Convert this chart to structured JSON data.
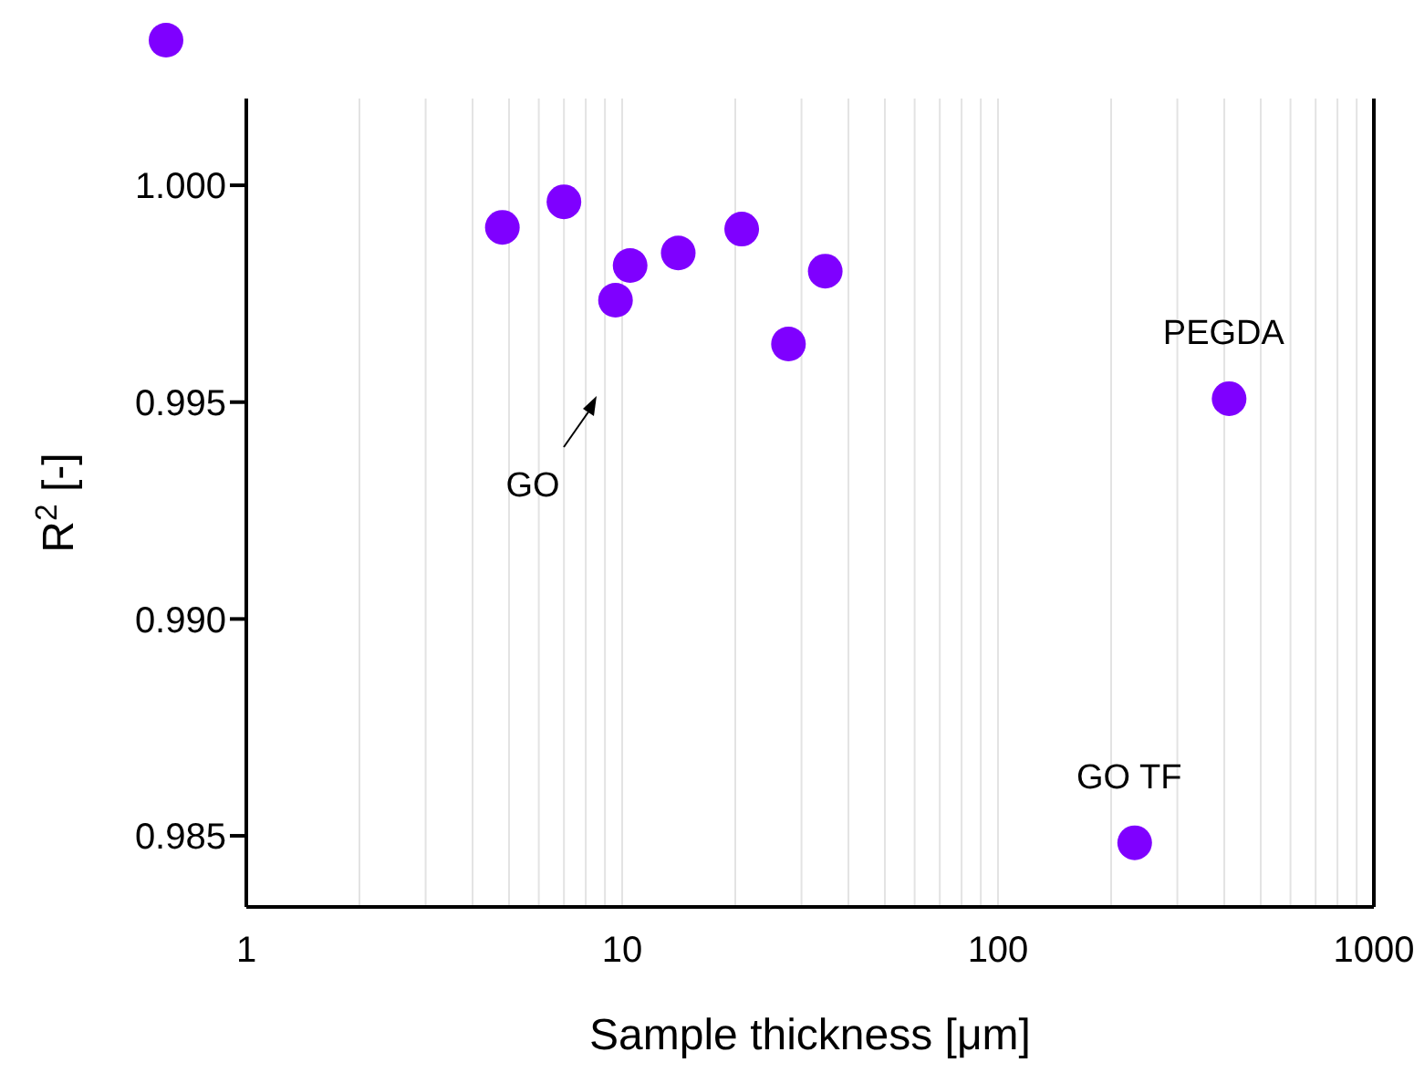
{
  "chart_data": {
    "type": "scatter",
    "xlabel": "Sample thickness [μm]",
    "ylabel": "R$^{2}$ [-]",
    "log": "x",
    "x": [
      4.8,
      7.0,
      9.6,
      10.5,
      14.1,
      20.8,
      27.7,
      34.7,
      412,
      231
    ],
    "values": [
      0.99903,
      0.99962,
      0.99735,
      0.99815,
      0.99844,
      0.99899,
      0.99634,
      0.99802,
      0.99508,
      0.98484
    ],
    "color": "#7f00ff",
    "marker": "circle",
    "grid": "x",
    "legend": false,
    "xlim": [
      1,
      1000
    ],
    "xticks": [
      1,
      {
        "value": 2,
        "label": null
      },
      {
        "value": 3,
        "label": null
      },
      {
        "value": 4,
        "label": null
      },
      {
        "value": 5,
        "label": null
      },
      {
        "value": 6,
        "label": null
      },
      {
        "value": 7,
        "label": null
      },
      {
        "value": 8,
        "label": null
      },
      {
        "value": 9,
        "label": null
      },
      10,
      {
        "value": 20,
        "label": null
      },
      {
        "value": 30,
        "label": null
      },
      {
        "value": 40,
        "label": null
      },
      {
        "value": 50,
        "label": null
      },
      {
        "value": 60,
        "label": null
      },
      {
        "value": 70,
        "label": null
      },
      {
        "value": 80,
        "label": null
      },
      {
        "value": 90,
        "label": null
      },
      100,
      {
        "value": 200,
        "label": null
      },
      {
        "value": 300,
        "label": null
      },
      {
        "value": 400,
        "label": null
      },
      {
        "value": 500,
        "label": null
      },
      {
        "value": 600,
        "label": null
      },
      {
        "value": 700,
        "label": null
      },
      {
        "value": 800,
        "label": null
      },
      {
        "value": 900,
        "label": null
      },
      1000
    ],
    "ylim": [
      0.98336,
      1.002
    ],
    "yticks": [
      {
        "value": 0.985,
        "label": "0.985"
      },
      {
        "value": 0.99,
        "label": "0.990"
      },
      {
        "value": 0.995,
        "label": "0.995"
      },
      {
        "value": 1,
        "label": "1.000"
      }
    ],
    "annotations": [
      "GO",
      {
        "text": "PEGDA",
        "x": 412,
        "y": 0.99508
      },
      {
        "text": "GO TF",
        "x": 231,
        "y": 0.98484
      }
    ]
  }
}
